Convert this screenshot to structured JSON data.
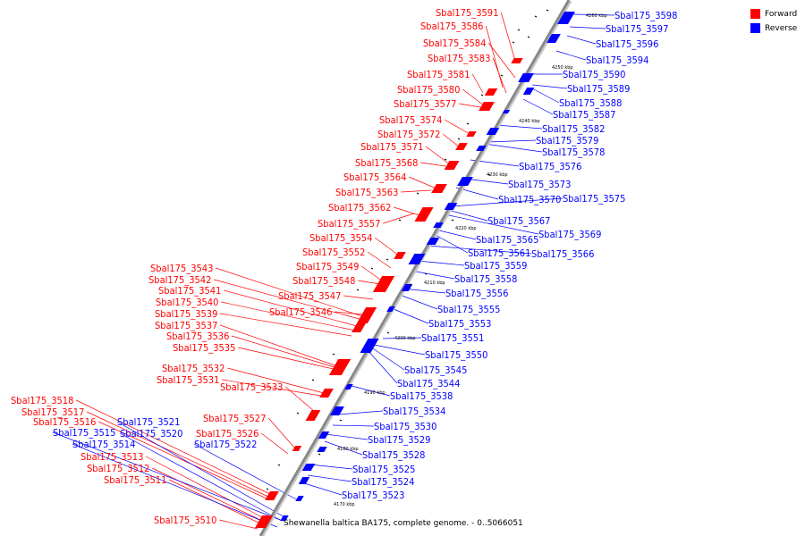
{
  "caption": "Shewanella baltica BA175, complete genome. - 0..5066051",
  "legend": [
    {
      "label": "Forward",
      "color": "#ff0000"
    },
    {
      "label": "Reverse",
      "color": "#0000ff"
    }
  ],
  "colors": {
    "forward": "#ff0000",
    "reverse": "#0000ff",
    "axis": "#888888"
  },
  "ticks": [
    "4170 kbp",
    "4180 kbp",
    "4190 kbp",
    "4200 kbp",
    "4210 kbp",
    "4220 kbp",
    "4230 kbp",
    "4240 kbp",
    "4250 kbp",
    "4260 kbp"
  ],
  "forward_genes": [
    "Sbal175_3591",
    "Sbal175_3586",
    "Sbal175_3584",
    "Sbal175_3583",
    "Sbal175_3581",
    "Sbal175_3580",
    "Sbal175_3577",
    "Sbal175_3574",
    "Sbal175_3572",
    "Sbal175_3571",
    "Sbal175_3568",
    "Sbal175_3564",
    "Sbal175_3563",
    "Sbal175_3562",
    "Sbal175_3557",
    "Sbal175_3554",
    "Sbal175_3552",
    "Sbal175_3549",
    "Sbal175_3548",
    "Sbal175_3547",
    "Sbal175_3546",
    "Sbal175_3543",
    "Sbal175_3542",
    "Sbal175_3541",
    "Sbal175_3540",
    "Sbal175_3539",
    "Sbal175_3537",
    "Sbal175_3536",
    "Sbal175_3535",
    "Sbal175_3532",
    "Sbal175_3531",
    "Sbal175_3533",
    "Sbal175_3527",
    "Sbal175_3526",
    "Sbal175_3518",
    "Sbal175_3517",
    "Sbal175_3516",
    "Sbal175_3513",
    "Sbal175_3512",
    "Sbal175_3511",
    "Sbal175_3510"
  ],
  "reverse_genes": [
    "Sbal175_3598",
    "Sbal175_3597",
    "Sbal175_3596",
    "Sbal175_3594",
    "Sbal175_3590",
    "Sbal175_3589",
    "Sbal175_3588",
    "Sbal175_3587",
    "Sbal175_3582",
    "Sbal175_3579",
    "Sbal175_3578",
    "Sbal175_3576",
    "Sbal175_3573",
    "Sbal175_3570",
    "Sbal175_3575",
    "Sbal175_3567",
    "Sbal175_3569",
    "Sbal175_3565",
    "Sbal175_3561",
    "Sbal175_3566",
    "Sbal175_3559",
    "Sbal175_3558",
    "Sbal175_3556",
    "Sbal175_3555",
    "Sbal175_3553",
    "Sbal175_3551",
    "Sbal175_3550",
    "Sbal175_3545",
    "Sbal175_3544",
    "Sbal175_3538",
    "Sbal175_3534",
    "Sbal175_3530",
    "Sbal175_3529",
    "Sbal175_3528",
    "Sbal175_3525",
    "Sbal175_3524",
    "Sbal175_3523",
    "Sbal175_3521",
    "Sbal175_3515",
    "Sbal175_3520",
    "Sbal175_3514",
    "Sbal175_3522"
  ]
}
